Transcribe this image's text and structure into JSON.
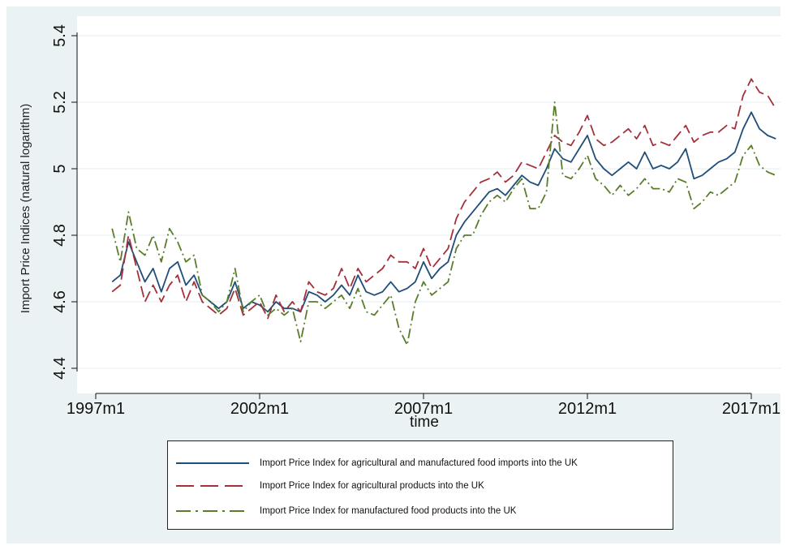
{
  "chart_data": {
    "type": "line",
    "title": "",
    "xlabel": "time",
    "ylabel": "Import Price Indices (natural logarithm)",
    "ylim": [
      4.4,
      5.4
    ],
    "xlim": [
      "1997m1",
      "2017m12"
    ],
    "y_ticks": [
      "4.4",
      "4.6",
      "4.8",
      "5",
      "5.2",
      "5.4"
    ],
    "x_ticks": [
      "1997m1",
      "2002m1",
      "2007m1",
      "2012m1",
      "2017m1"
    ],
    "grid": true,
    "legend_position": "bottom",
    "series": [
      {
        "name": "Import Price Index for agricultural and manufactured food imports into the UK",
        "color": "#1f4e79",
        "dash": "solid",
        "points": [
          [
            "1997m7",
            4.66
          ],
          [
            "1997m10",
            4.68
          ],
          [
            "1998m1",
            4.78
          ],
          [
            "1998m4",
            4.72
          ],
          [
            "1998m7",
            4.66
          ],
          [
            "1998m10",
            4.7
          ],
          [
            "1999m1",
            4.63
          ],
          [
            "1999m4",
            4.7
          ],
          [
            "1999m7",
            4.72
          ],
          [
            "1999m10",
            4.65
          ],
          [
            "2000m1",
            4.68
          ],
          [
            "2000m4",
            4.62
          ],
          [
            "2000m7",
            4.6
          ],
          [
            "2000m10",
            4.58
          ],
          [
            "2001m1",
            4.6
          ],
          [
            "2001m4",
            4.66
          ],
          [
            "2001m7",
            4.58
          ],
          [
            "2001m10",
            4.6
          ],
          [
            "2002m1",
            4.59
          ],
          [
            "2002m4",
            4.57
          ],
          [
            "2002m7",
            4.6
          ],
          [
            "2002m10",
            4.58
          ],
          [
            "2003m1",
            4.58
          ],
          [
            "2003m4",
            4.57
          ],
          [
            "2003m7",
            4.63
          ],
          [
            "2003m10",
            4.62
          ],
          [
            "2004m1",
            4.6
          ],
          [
            "2004m4",
            4.62
          ],
          [
            "2004m7",
            4.65
          ],
          [
            "2004m10",
            4.62
          ],
          [
            "2005m1",
            4.68
          ],
          [
            "2005m4",
            4.63
          ],
          [
            "2005m7",
            4.62
          ],
          [
            "2005m10",
            4.63
          ],
          [
            "2006m1",
            4.66
          ],
          [
            "2006m4",
            4.63
          ],
          [
            "2006m7",
            4.64
          ],
          [
            "2006m10",
            4.66
          ],
          [
            "2007m1",
            4.72
          ],
          [
            "2007m4",
            4.67
          ],
          [
            "2007m7",
            4.7
          ],
          [
            "2007m10",
            4.72
          ],
          [
            "2008m1",
            4.8
          ],
          [
            "2008m4",
            4.84
          ],
          [
            "2008m7",
            4.87
          ],
          [
            "2008m10",
            4.9
          ],
          [
            "2009m1",
            4.93
          ],
          [
            "2009m4",
            4.94
          ],
          [
            "2009m7",
            4.92
          ],
          [
            "2009m10",
            4.95
          ],
          [
            "2010m1",
            4.98
          ],
          [
            "2010m4",
            4.96
          ],
          [
            "2010m7",
            4.95
          ],
          [
            "2010m10",
            5.0
          ],
          [
            "2011m1",
            5.06
          ],
          [
            "2011m4",
            5.03
          ],
          [
            "2011m7",
            5.02
          ],
          [
            "2011m10",
            5.06
          ],
          [
            "2012m1",
            5.1
          ],
          [
            "2012m4",
            5.03
          ],
          [
            "2012m7",
            5.0
          ],
          [
            "2012m10",
            4.98
          ],
          [
            "2013m1",
            5.0
          ],
          [
            "2013m4",
            5.02
          ],
          [
            "2013m7",
            5.0
          ],
          [
            "2013m10",
            5.05
          ],
          [
            "2014m1",
            5.0
          ],
          [
            "2014m4",
            5.01
          ],
          [
            "2014m7",
            5.0
          ],
          [
            "2014m10",
            5.02
          ],
          [
            "2015m1",
            5.06
          ],
          [
            "2015m4",
            4.97
          ],
          [
            "2015m7",
            4.98
          ],
          [
            "2015m10",
            5.0
          ],
          [
            "2016m1",
            5.02
          ],
          [
            "2016m4",
            5.03
          ],
          [
            "2016m7",
            5.05
          ],
          [
            "2016m10",
            5.12
          ],
          [
            "2017m1",
            5.17
          ],
          [
            "2017m4",
            5.12
          ],
          [
            "2017m7",
            5.1
          ],
          [
            "2017m10",
            5.09
          ]
        ]
      },
      {
        "name": "Import Price Index for agricultural  products into the UK",
        "color": "#a3303b",
        "dash": "long",
        "points": [
          [
            "1997m7",
            4.63
          ],
          [
            "1997m10",
            4.65
          ],
          [
            "1998m1",
            4.8
          ],
          [
            "1998m4",
            4.7
          ],
          [
            "1998m7",
            4.6
          ],
          [
            "1998m10",
            4.65
          ],
          [
            "1999m1",
            4.6
          ],
          [
            "1999m4",
            4.65
          ],
          [
            "1999m7",
            4.68
          ],
          [
            "1999m10",
            4.6
          ],
          [
            "2000m1",
            4.66
          ],
          [
            "2000m4",
            4.6
          ],
          [
            "2000m7",
            4.58
          ],
          [
            "2000m10",
            4.56
          ],
          [
            "2001m1",
            4.58
          ],
          [
            "2001m4",
            4.64
          ],
          [
            "2001m7",
            4.56
          ],
          [
            "2001m10",
            4.58
          ],
          [
            "2002m1",
            4.6
          ],
          [
            "2002m4",
            4.55
          ],
          [
            "2002m7",
            4.62
          ],
          [
            "2002m10",
            4.57
          ],
          [
            "2003m1",
            4.6
          ],
          [
            "2003m4",
            4.57
          ],
          [
            "2003m7",
            4.66
          ],
          [
            "2003m10",
            4.63
          ],
          [
            "2004m1",
            4.62
          ],
          [
            "2004m4",
            4.64
          ],
          [
            "2004m7",
            4.7
          ],
          [
            "2004m10",
            4.64
          ],
          [
            "2005m1",
            4.7
          ],
          [
            "2005m4",
            4.66
          ],
          [
            "2005m7",
            4.68
          ],
          [
            "2005m10",
            4.7
          ],
          [
            "2006m1",
            4.74
          ],
          [
            "2006m4",
            4.72
          ],
          [
            "2006m7",
            4.72
          ],
          [
            "2006m10",
            4.7
          ],
          [
            "2007m1",
            4.76
          ],
          [
            "2007m4",
            4.7
          ],
          [
            "2007m7",
            4.73
          ],
          [
            "2007m10",
            4.76
          ],
          [
            "2008m1",
            4.85
          ],
          [
            "2008m4",
            4.9
          ],
          [
            "2008m7",
            4.93
          ],
          [
            "2008m10",
            4.96
          ],
          [
            "2009m1",
            4.97
          ],
          [
            "2009m4",
            4.99
          ],
          [
            "2009m7",
            4.96
          ],
          [
            "2009m10",
            4.98
          ],
          [
            "2010m1",
            5.02
          ],
          [
            "2010m4",
            5.01
          ],
          [
            "2010m7",
            5.0
          ],
          [
            "2010m10",
            5.05
          ],
          [
            "2011m1",
            5.1
          ],
          [
            "2011m4",
            5.08
          ],
          [
            "2011m7",
            5.07
          ],
          [
            "2011m10",
            5.11
          ],
          [
            "2012m1",
            5.16
          ],
          [
            "2012m4",
            5.09
          ],
          [
            "2012m7",
            5.07
          ],
          [
            "2012m10",
            5.08
          ],
          [
            "2013m1",
            5.1
          ],
          [
            "2013m4",
            5.12
          ],
          [
            "2013m7",
            5.09
          ],
          [
            "2013m10",
            5.13
          ],
          [
            "2014m1",
            5.07
          ],
          [
            "2014m4",
            5.08
          ],
          [
            "2014m7",
            5.07
          ],
          [
            "2014m10",
            5.1
          ],
          [
            "2015m1",
            5.13
          ],
          [
            "2015m4",
            5.08
          ],
          [
            "2015m7",
            5.1
          ],
          [
            "2015m10",
            5.11
          ],
          [
            "2016m1",
            5.11
          ],
          [
            "2016m4",
            5.13
          ],
          [
            "2016m7",
            5.12
          ],
          [
            "2016m10",
            5.22
          ],
          [
            "2017m1",
            5.27
          ],
          [
            "2017m4",
            5.23
          ],
          [
            "2017m7",
            5.22
          ],
          [
            "2017m10",
            5.18
          ]
        ]
      },
      {
        "name": "Import Price Index for manufactured  food products into the UK",
        "color": "#5a7d2a",
        "dash": "dashdot",
        "points": [
          [
            "1997m7",
            4.82
          ],
          [
            "1997m10",
            4.72
          ],
          [
            "1998m1",
            4.87
          ],
          [
            "1998m4",
            4.76
          ],
          [
            "1998m7",
            4.74
          ],
          [
            "1998m10",
            4.8
          ],
          [
            "1999m1",
            4.72
          ],
          [
            "1999m4",
            4.82
          ],
          [
            "1999m7",
            4.78
          ],
          [
            "1999m10",
            4.72
          ],
          [
            "2000m1",
            4.74
          ],
          [
            "2000m4",
            4.62
          ],
          [
            "2000m7",
            4.6
          ],
          [
            "2000m10",
            4.57
          ],
          [
            "2001m1",
            4.6
          ],
          [
            "2001m4",
            4.7
          ],
          [
            "2001m7",
            4.57
          ],
          [
            "2001m10",
            4.6
          ],
          [
            "2002m1",
            4.62
          ],
          [
            "2002m4",
            4.56
          ],
          [
            "2002m7",
            4.58
          ],
          [
            "2002m10",
            4.56
          ],
          [
            "2003m1",
            4.58
          ],
          [
            "2003m4",
            4.48
          ],
          [
            "2003m7",
            4.6
          ],
          [
            "2003m10",
            4.6
          ],
          [
            "2004m1",
            4.58
          ],
          [
            "2004m4",
            4.6
          ],
          [
            "2004m7",
            4.62
          ],
          [
            "2004m10",
            4.58
          ],
          [
            "2005m1",
            4.64
          ],
          [
            "2005m4",
            4.57
          ],
          [
            "2005m7",
            4.56
          ],
          [
            "2005m10",
            4.59
          ],
          [
            "2006m1",
            4.62
          ],
          [
            "2006m4",
            4.52
          ],
          [
            "2006m7",
            4.47
          ],
          [
            "2006m10",
            4.6
          ],
          [
            "2007m1",
            4.66
          ],
          [
            "2007m4",
            4.62
          ],
          [
            "2007m7",
            4.64
          ],
          [
            "2007m10",
            4.66
          ],
          [
            "2008m1",
            4.76
          ],
          [
            "2008m4",
            4.8
          ],
          [
            "2008m7",
            4.8
          ],
          [
            "2008m10",
            4.86
          ],
          [
            "2009m1",
            4.9
          ],
          [
            "2009m4",
            4.92
          ],
          [
            "2009m7",
            4.9
          ],
          [
            "2009m10",
            4.94
          ],
          [
            "2010m1",
            4.97
          ],
          [
            "2010m4",
            4.88
          ],
          [
            "2010m7",
            4.88
          ],
          [
            "2010m10",
            4.93
          ],
          [
            "2011m1",
            5.2
          ],
          [
            "2011m4",
            4.98
          ],
          [
            "2011m7",
            4.97
          ],
          [
            "2011m10",
            5.0
          ],
          [
            "2012m1",
            5.04
          ],
          [
            "2012m4",
            4.97
          ],
          [
            "2012m7",
            4.95
          ],
          [
            "2012m10",
            4.92
          ],
          [
            "2013m1",
            4.95
          ],
          [
            "2013m4",
            4.92
          ],
          [
            "2013m7",
            4.94
          ],
          [
            "2013m10",
            4.97
          ],
          [
            "2014m1",
            4.94
          ],
          [
            "2014m4",
            4.94
          ],
          [
            "2014m7",
            4.93
          ],
          [
            "2014m10",
            4.97
          ],
          [
            "2015m1",
            4.96
          ],
          [
            "2015m4",
            4.88
          ],
          [
            "2015m7",
            4.9
          ],
          [
            "2015m10",
            4.93
          ],
          [
            "2016m1",
            4.92
          ],
          [
            "2016m4",
            4.94
          ],
          [
            "2016m7",
            4.96
          ],
          [
            "2016m10",
            5.04
          ],
          [
            "2017m1",
            5.07
          ],
          [
            "2017m4",
            5.01
          ],
          [
            "2017m7",
            4.99
          ],
          [
            "2017m10",
            4.98
          ]
        ]
      }
    ]
  }
}
